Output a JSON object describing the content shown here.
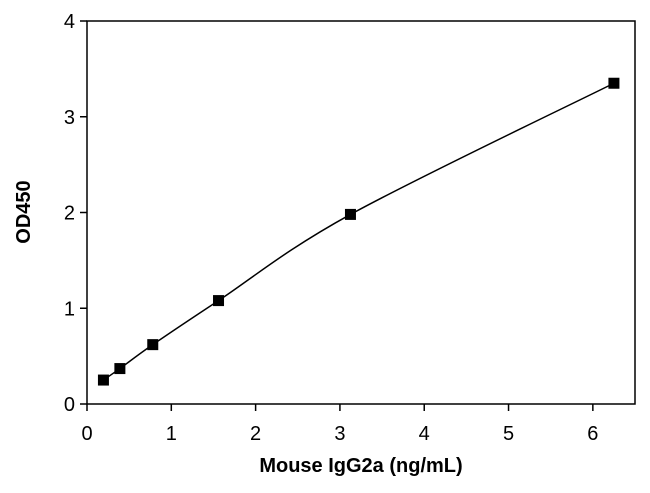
{
  "chart_data": {
    "type": "scatter",
    "title": "",
    "xlabel": "Mouse IgG2a (ng/mL)",
    "ylabel": "OD450",
    "xlim": [
      0,
      6.5
    ],
    "ylim": [
      0,
      4
    ],
    "xticks": [
      "0",
      "1",
      "2",
      "3",
      "4",
      "5",
      "6"
    ],
    "yticks": [
      "0",
      "1",
      "2",
      "3",
      "4"
    ],
    "grid": false,
    "legend": "none",
    "marker": "square",
    "color": "#000000",
    "series": [
      {
        "x": [
          0.195,
          0.39,
          0.78,
          1.56,
          3.125,
          6.25
        ],
        "y": [
          0.25,
          0.37,
          0.62,
          1.08,
          1.98,
          3.35
        ]
      }
    ],
    "fit_curve": true
  }
}
